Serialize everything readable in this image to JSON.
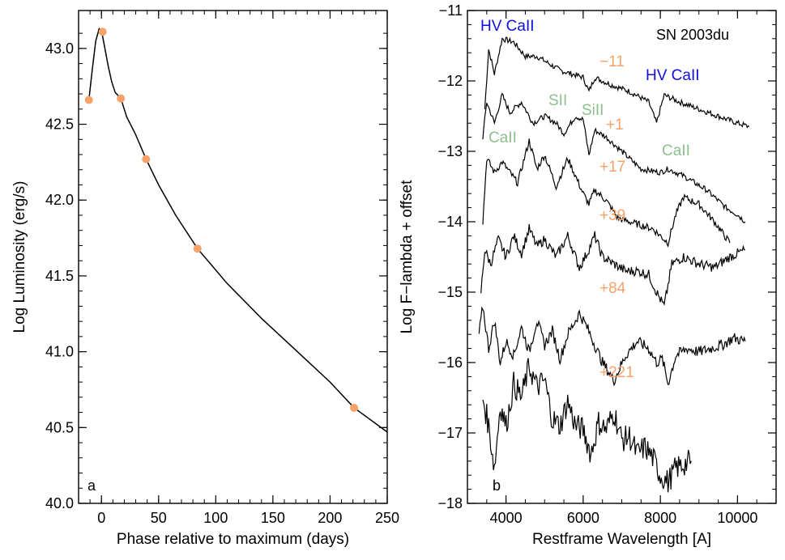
{
  "chart_data": [
    {
      "type": "line",
      "panel_label": "a",
      "xlabel": "Phase relative to maximum (days)",
      "ylabel": "Log Luminosity (erg/s)",
      "xlim": [
        -20,
        250
      ],
      "ylim": [
        40.0,
        43.25
      ],
      "xticks": [
        0,
        50,
        100,
        150,
        200,
        250
      ],
      "yticks": [
        40.0,
        40.5,
        41.0,
        41.5,
        42.0,
        42.5,
        43.0
      ],
      "grid": false,
      "series": [
        {
          "kind": "curve",
          "color": "#000000",
          "x": [
            -11,
            -8,
            -5,
            -2,
            0,
            3,
            6,
            9,
            12,
            17,
            22,
            30,
            39,
            50,
            65,
            84,
            110,
            140,
            170,
            200,
            221,
            250
          ],
          "y": [
            42.66,
            42.86,
            43.05,
            43.13,
            43.12,
            43.0,
            42.88,
            42.78,
            42.71,
            42.67,
            42.55,
            42.43,
            42.27,
            42.1,
            41.9,
            41.68,
            41.45,
            41.22,
            41.01,
            40.8,
            40.63,
            40.47
          ]
        },
        {
          "kind": "points",
          "color": "#f6a26a",
          "x": [
            -11,
            1,
            17,
            39,
            84,
            221
          ],
          "y": [
            42.66,
            43.11,
            42.67,
            42.27,
            41.68,
            40.63
          ]
        }
      ]
    },
    {
      "type": "line",
      "panel_label": "b",
      "xlabel": "Restframe Wavelength [A]",
      "ylabel": "Log F−lambda + offset",
      "xlim": [
        3000,
        11000
      ],
      "ylim": [
        -18,
        -11
      ],
      "xticks": [
        4000,
        6000,
        8000,
        10000
      ],
      "yticks": [
        -18,
        -17,
        -16,
        -15,
        -14,
        -13,
        -12,
        -11
      ],
      "grid": false,
      "object_label": "SN 2003du",
      "epoch_labels": [
        "−11",
        "+1",
        "+17",
        "+39",
        "+84",
        "+221"
      ],
      "epoch_color": "#f6a26a",
      "line_ids": [
        {
          "text": "HV CaII",
          "color": "#1010dd"
        },
        {
          "text": "HV CaII",
          "color": "#1010dd"
        },
        {
          "text": "SII",
          "color": "#8fbf8f"
        },
        {
          "text": "SiII",
          "color": "#8fbf8f"
        },
        {
          "text": "CaII",
          "color": "#8fbf8f"
        },
        {
          "text": "CaII",
          "color": "#8fbf8f"
        }
      ],
      "series": [
        {
          "name": "−11",
          "x": [
            3450,
            3550,
            3700,
            3900,
            4200,
            4500,
            4800,
            5100,
            5400,
            5700,
            6000,
            6150,
            6300,
            6700,
            7200,
            7700,
            7900,
            8100,
            8500,
            9000,
            9500,
            10000,
            10300
          ],
          "y": [
            -12.4,
            -11.55,
            -11.9,
            -11.4,
            -11.45,
            -11.65,
            -11.65,
            -11.75,
            -11.85,
            -11.9,
            -11.95,
            -12.15,
            -11.95,
            -12.05,
            -12.15,
            -12.3,
            -12.6,
            -12.2,
            -12.3,
            -12.4,
            -12.5,
            -12.6,
            -12.65
          ]
        },
        {
          "name": "+1",
          "x": [
            3400,
            3500,
            3700,
            3900,
            4100,
            4400,
            4700,
            5000,
            5300,
            5500,
            5800,
            6000,
            6150,
            6300,
            6600,
            7000,
            7500,
            8000,
            8200,
            8600,
            9200,
            9700,
            10000,
            10200
          ],
          "y": [
            -12.8,
            -12.3,
            -12.6,
            -12.2,
            -12.45,
            -12.3,
            -12.6,
            -12.5,
            -12.6,
            -12.75,
            -12.5,
            -12.55,
            -13.05,
            -12.7,
            -12.8,
            -13.0,
            -13.25,
            -13.3,
            -13.25,
            -13.35,
            -13.55,
            -13.8,
            -13.9,
            -14.0
          ]
        },
        {
          "name": "+17",
          "x": [
            3400,
            3500,
            3700,
            3900,
            4100,
            4300,
            4600,
            4800,
            5000,
            5300,
            5600,
            5800,
            6000,
            6150,
            6300,
            6600,
            6900,
            7200,
            7500,
            7800,
            8000,
            8200,
            8400,
            8600,
            9000,
            9400,
            9800
          ],
          "y": [
            -14.0,
            -13.1,
            -13.3,
            -13.15,
            -13.3,
            -13.45,
            -12.85,
            -13.25,
            -13.05,
            -13.5,
            -13.1,
            -13.35,
            -13.6,
            -13.75,
            -13.55,
            -13.7,
            -13.95,
            -14.0,
            -14.05,
            -14.1,
            -14.2,
            -14.3,
            -13.9,
            -13.65,
            -13.75,
            -14.0,
            -14.3
          ]
        },
        {
          "name": "+39",
          "x": [
            3350,
            3450,
            3600,
            3800,
            4000,
            4200,
            4400,
            4600,
            4800,
            5000,
            5300,
            5600,
            5900,
            6100,
            6300,
            6500,
            6800,
            7100,
            7400,
            7700,
            7900,
            8100,
            8300,
            8600,
            9000,
            9400,
            9800,
            10200
          ],
          "y": [
            -15.0,
            -14.4,
            -14.6,
            -14.25,
            -14.5,
            -14.2,
            -14.45,
            -14.1,
            -14.35,
            -14.25,
            -14.5,
            -14.2,
            -14.65,
            -14.45,
            -14.2,
            -14.5,
            -14.6,
            -14.7,
            -14.7,
            -14.75,
            -15.0,
            -15.2,
            -14.6,
            -14.5,
            -14.6,
            -14.65,
            -14.5,
            -14.4
          ]
        },
        {
          "name": "+84",
          "x": [
            3300,
            3400,
            3550,
            3700,
            3850,
            4000,
            4200,
            4400,
            4600,
            4800,
            5000,
            5200,
            5400,
            5600,
            5900,
            6100,
            6300,
            6500,
            6800,
            7100,
            7400,
            7700,
            7900,
            8050,
            8200,
            8400,
            8700,
            9000,
            9300,
            9600,
            9900,
            10200
          ],
          "y": [
            -15.6,
            -15.2,
            -15.8,
            -15.4,
            -16.0,
            -15.7,
            -15.9,
            -15.5,
            -15.85,
            -15.4,
            -15.75,
            -15.55,
            -15.95,
            -15.6,
            -15.3,
            -15.5,
            -15.75,
            -16.0,
            -16.25,
            -15.9,
            -15.7,
            -15.8,
            -16.0,
            -15.95,
            -16.3,
            -15.9,
            -15.8,
            -15.85,
            -15.8,
            -15.75,
            -15.65,
            -15.7
          ]
        },
        {
          "name": "+221",
          "x": [
            3400,
            3550,
            3700,
            3850,
            4000,
            4200,
            4400,
            4600,
            4800,
            5000,
            5200,
            5400,
            5600,
            5800,
            6000,
            6200,
            6400,
            6600,
            6800,
            7000,
            7200,
            7400,
            7600,
            7800,
            8000,
            8200,
            8400,
            8600,
            8800
          ],
          "y": [
            -16.5,
            -16.9,
            -17.5,
            -16.6,
            -16.9,
            -16.3,
            -16.5,
            -16.05,
            -16.35,
            -16.25,
            -16.8,
            -16.9,
            -16.55,
            -16.9,
            -16.95,
            -17.3,
            -16.85,
            -16.95,
            -16.7,
            -17.1,
            -17.05,
            -17.3,
            -17.2,
            -17.35,
            -17.6,
            -17.7,
            -17.5,
            -17.45,
            -17.4
          ]
        }
      ]
    }
  ]
}
